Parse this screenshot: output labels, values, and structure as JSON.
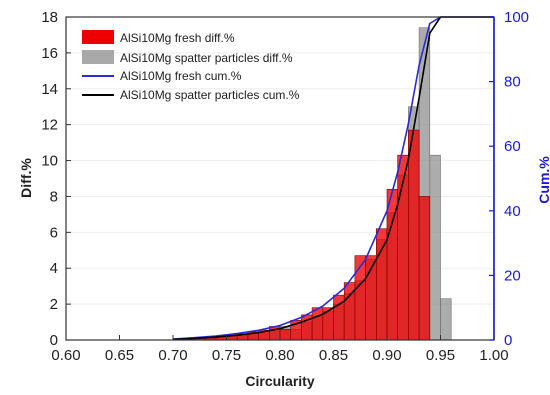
{
  "colors": {
    "fresh_bar": "#ee0000",
    "spatter_bar": "#8c8c8c",
    "fresh_cum": "#2a2ad6",
    "spatter_cum": "#000000",
    "right_axis": "#1a1ad8",
    "frame": "#333333"
  },
  "chart_data": {
    "type": "bar",
    "xlabel": "Circularity",
    "ylabel_left": "Diff.%",
    "ylabel_right": "Cum.%",
    "xlim": [
      0.6,
      1.0
    ],
    "ylim_left": [
      0,
      18
    ],
    "ylim_right": [
      0,
      100
    ],
    "x_ticks": [
      "0.60",
      "0.65",
      "0.70",
      "0.75",
      "0.80",
      "0.85",
      "0.90",
      "0.95",
      "1.00"
    ],
    "y_left_ticks": [
      "0",
      "2",
      "4",
      "6",
      "8",
      "10",
      "12",
      "14",
      "16",
      "18"
    ],
    "y_right_ticks": [
      "0",
      "20",
      "40",
      "60",
      "80",
      "100"
    ],
    "legend": [
      "AlSi10Mg fresh diff.%",
      "AlSi10Mg spatter particles diff.%",
      "AlSi10Mg fresh cum.%",
      "AlSi10Mg spatter particles cum.%"
    ],
    "bin_width": 0.01,
    "bin_centers": [
      0.705,
      0.715,
      0.725,
      0.735,
      0.745,
      0.755,
      0.765,
      0.775,
      0.785,
      0.795,
      0.805,
      0.815,
      0.825,
      0.835,
      0.845,
      0.855,
      0.865,
      0.875,
      0.885,
      0.895,
      0.905,
      0.915,
      0.925,
      0.935,
      0.945,
      0.955
    ],
    "series": [
      {
        "name": "AlSi10Mg fresh diff.%",
        "kind": "bar",
        "values": [
          0.05,
          0.08,
          0.1,
          0.15,
          0.2,
          0.25,
          0.35,
          0.45,
          0.55,
          0.75,
          0.6,
          1.1,
          1.4,
          1.8,
          1.8,
          2.5,
          3.2,
          4.7,
          4.7,
          6.2,
          8.4,
          10.3,
          11.7,
          8.0,
          0.0,
          0.0
        ]
      },
      {
        "name": "AlSi10Mg spatter particles diff.%",
        "kind": "bar",
        "values": [
          0.05,
          0.05,
          0.08,
          0.1,
          0.15,
          0.2,
          0.25,
          0.3,
          0.4,
          0.5,
          0.75,
          0.6,
          1.0,
          1.3,
          1.6,
          2.0,
          2.6,
          3.3,
          4.5,
          5.6,
          7.1,
          9.2,
          13.0,
          17.4,
          10.3,
          2.3
        ]
      },
      {
        "name": "AlSi10Mg fresh cum.%",
        "kind": "line",
        "x": [
          0.7,
          0.72,
          0.74,
          0.76,
          0.78,
          0.8,
          0.82,
          0.84,
          0.86,
          0.88,
          0.9,
          0.91,
          0.92,
          0.93,
          0.94,
          0.95,
          0.96,
          1.0
        ],
        "values": [
          0.3,
          0.7,
          1.2,
          2.0,
          3.0,
          4.5,
          7.0,
          10.5,
          16.0,
          25.0,
          40.0,
          52.0,
          67.0,
          85.0,
          98.0,
          100.0,
          100.0,
          100.0
        ]
      },
      {
        "name": "AlSi10Mg spatter particles cum.%",
        "kind": "line",
        "x": [
          0.7,
          0.72,
          0.74,
          0.76,
          0.78,
          0.8,
          0.82,
          0.84,
          0.86,
          0.88,
          0.9,
          0.91,
          0.92,
          0.93,
          0.94,
          0.95,
          0.96,
          1.0
        ],
        "values": [
          0.2,
          0.5,
          0.9,
          1.5,
          2.3,
          3.5,
          5.5,
          8.0,
          12.0,
          19.0,
          31.0,
          42.0,
          56.0,
          75.0,
          95.0,
          100.0,
          100.0,
          100.0
        ]
      }
    ]
  }
}
